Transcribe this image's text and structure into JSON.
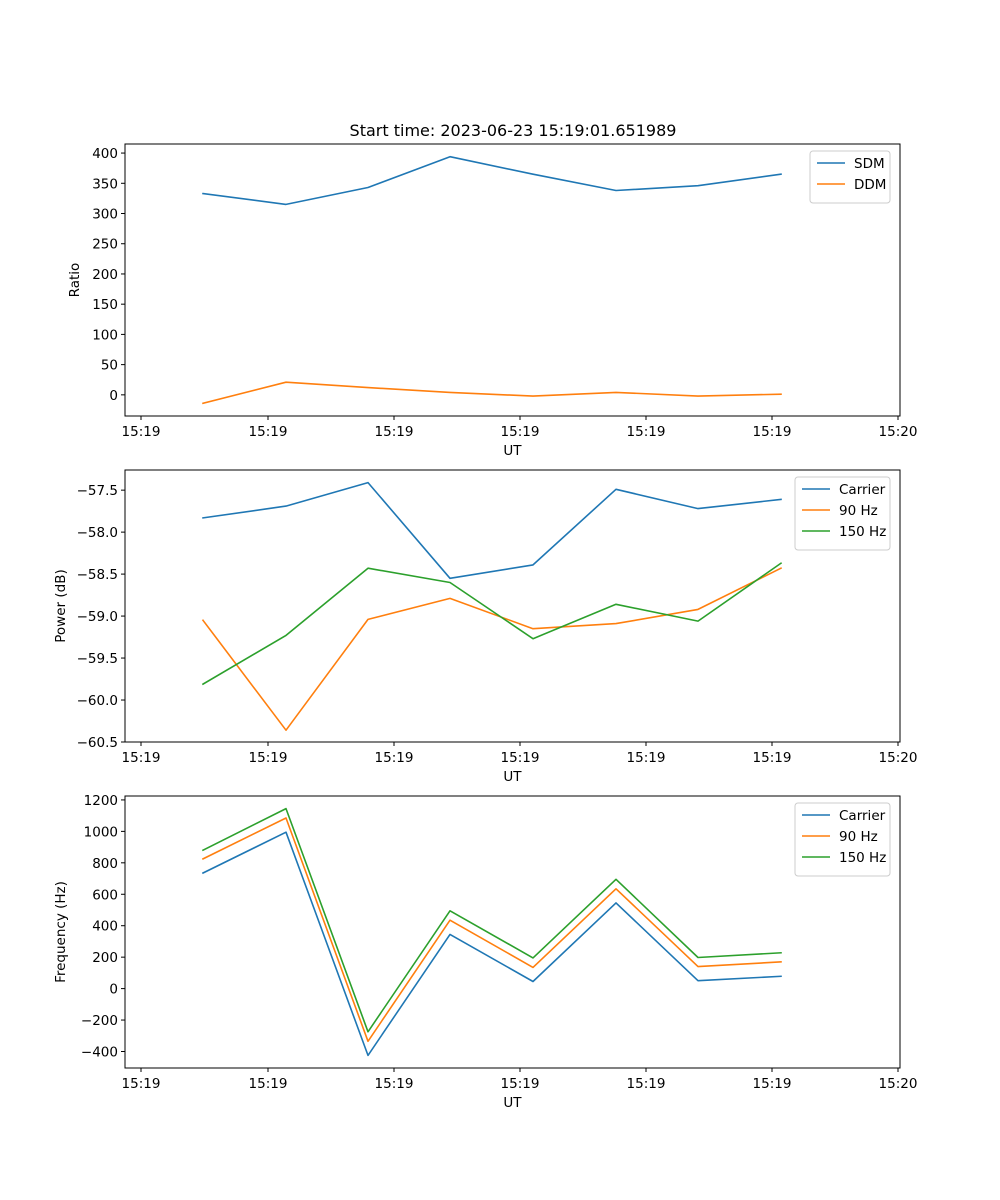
{
  "title": "Start time: 2023-06-23 15:19:01.651989",
  "chart_data": [
    {
      "type": "line",
      "ylabel": "Ratio",
      "xlabel": "UT",
      "x_tick_labels": [
        "15:19",
        "15:19",
        "15:19",
        "15:19",
        "15:19",
        "15:19",
        "15:20"
      ],
      "ylim": [
        -35,
        415
      ],
      "yticks": [
        0,
        50,
        100,
        150,
        200,
        250,
        300,
        350,
        400
      ],
      "legend_position": "upper-right",
      "series": [
        {
          "name": "SDM",
          "color": "#1f77b4",
          "values": [
            333,
            315,
            343,
            394,
            365,
            338,
            346,
            365
          ]
        },
        {
          "name": "DDM",
          "color": "#ff7f0e",
          "values": [
            -14,
            21,
            12,
            4,
            -2,
            4,
            -2,
            1
          ]
        }
      ]
    },
    {
      "type": "line",
      "ylabel": "Power (dB)",
      "xlabel": "UT",
      "x_tick_labels": [
        "15:19",
        "15:19",
        "15:19",
        "15:19",
        "15:19",
        "15:19",
        "15:20"
      ],
      "ylim": [
        -60.5,
        -57.26
      ],
      "yticks": [
        -60.5,
        -60.0,
        -59.5,
        -59.0,
        -58.5,
        -58.0,
        -57.5
      ],
      "ytick_labels": [
        "−60.5",
        "−60.0",
        "−59.5",
        "−59.0",
        "−58.5",
        "−58.0",
        "−57.5"
      ],
      "legend_position": "upper-right",
      "series": [
        {
          "name": "Carrier",
          "color": "#1f77b4",
          "values": [
            -57.83,
            -57.69,
            -57.41,
            -58.55,
            -58.39,
            -57.49,
            -57.72,
            -57.61
          ]
        },
        {
          "name": "90 Hz",
          "color": "#ff7f0e",
          "values": [
            -59.05,
            -60.36,
            -59.04,
            -58.79,
            -59.15,
            -59.09,
            -58.92,
            -58.43
          ]
        },
        {
          "name": "150 Hz",
          "color": "#2ca02c",
          "values": [
            -59.81,
            -59.23,
            -58.43,
            -58.6,
            -59.27,
            -58.86,
            -59.06,
            -58.37
          ]
        }
      ]
    },
    {
      "type": "line",
      "ylabel": "Frequency (Hz)",
      "xlabel": "UT",
      "x_tick_labels": [
        "15:19",
        "15:19",
        "15:19",
        "15:19",
        "15:19",
        "15:19",
        "15:20"
      ],
      "ylim": [
        -505,
        1225
      ],
      "yticks": [
        -400,
        -200,
        0,
        200,
        400,
        600,
        800,
        1000,
        1200
      ],
      "ytick_labels": [
        "−400",
        "−200",
        "0",
        "200",
        "400",
        "600",
        "800",
        "1000",
        "1200"
      ],
      "legend_position": "upper-right",
      "series": [
        {
          "name": "Carrier",
          "color": "#1f77b4",
          "values": [
            735,
            995,
            -425,
            345,
            45,
            545,
            50,
            78
          ]
        },
        {
          "name": "90 Hz",
          "color": "#ff7f0e",
          "values": [
            825,
            1085,
            -335,
            435,
            135,
            635,
            140,
            170
          ]
        },
        {
          "name": "150 Hz",
          "color": "#2ca02c",
          "values": [
            880,
            1145,
            -275,
            495,
            195,
            695,
            198,
            228
          ]
        }
      ]
    }
  ]
}
